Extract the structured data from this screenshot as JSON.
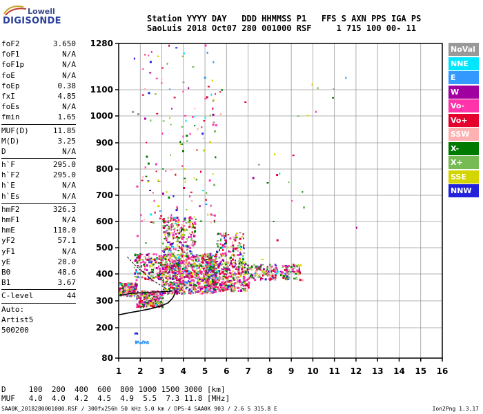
{
  "logo": {
    "top": "Lowell",
    "bottom": "DIGISONDE"
  },
  "header": {
    "line1": "Station YYYY DAY   DDD HHMMSS P1   FFS S AXN PPS IGA PS",
    "line2": "SaoLuis 2018 Oct07 280 001000 RSF     1 715 100 00- 11"
  },
  "params": [
    {
      "name": "foF2",
      "value": "3.650"
    },
    {
      "name": "foF1",
      "value": "N/A"
    },
    {
      "name": "foF1p",
      "value": "N/A"
    },
    {
      "name": "foE",
      "value": "N/A"
    },
    {
      "name": "foEp",
      "value": "0.38"
    },
    {
      "name": "fxI",
      "value": "4.85"
    },
    {
      "name": "foEs",
      "value": "N/A"
    },
    {
      "name": "fmin",
      "value": "1.65"
    },
    {
      "sep": true
    },
    {
      "name": "MUF(D)",
      "value": "11.85"
    },
    {
      "name": "M(D)",
      "value": "3.25"
    },
    {
      "name": "D",
      "value": "N/A"
    },
    {
      "sep": true
    },
    {
      "name": "h`F",
      "value": "295.0"
    },
    {
      "name": "h`F2",
      "value": "295.0"
    },
    {
      "name": "h`E",
      "value": "N/A"
    },
    {
      "name": "h`Es",
      "value": "N/A"
    },
    {
      "sep": true
    },
    {
      "name": "hmF2",
      "value": "326.3"
    },
    {
      "name": "hmF1",
      "value": "N/A"
    },
    {
      "name": "hmE",
      "value": "110.0"
    },
    {
      "name": "yF2",
      "value": "57.1"
    },
    {
      "name": "yF1",
      "value": "N/A"
    },
    {
      "name": "yE",
      "value": "20.0"
    },
    {
      "name": "B0",
      "value": "48.6"
    },
    {
      "name": "B1",
      "value": "3.67"
    },
    {
      "sep": true
    },
    {
      "name": "C-level",
      "value": "44"
    },
    {
      "sep": true
    },
    {
      "name": "Auto:",
      "value": ""
    },
    {
      "name": "Artist5",
      "value": ""
    },
    {
      "name": "500200",
      "value": ""
    }
  ],
  "legend": [
    {
      "label": "NoVal",
      "color": "#999999"
    },
    {
      "label": "NNE",
      "color": "#00e6ff"
    },
    {
      "label": "E",
      "color": "#3399ff"
    },
    {
      "label": "W",
      "color": "#a000a0"
    },
    {
      "label": "Vo-",
      "color": "#ff33aa"
    },
    {
      "label": "Vo+",
      "color": "#e6002e"
    },
    {
      "label": "SSW",
      "color": "#ffb0b0"
    },
    {
      "label": "X-",
      "color": "#007a00"
    },
    {
      "label": "X+",
      "color": "#77bb55"
    },
    {
      "label": "SSE",
      "color": "#d4d400"
    },
    {
      "label": "NNW",
      "color": "#2222dd"
    }
  ],
  "footer": {
    "line1": "D     100  200  400  600  800 1000 1500 3000 [km]",
    "line2": "MUF   4.0  4.0  4.2  4.5  4.9  5.5  7.3 11.8 [MHz]",
    "bottom": "SAA0K_2018280001000.RSF / 300fx256h 50 kHz 5.0 km / DPS-4 SAA0K 903 / 2.6 S 315.8 E",
    "version": "Ion2Png 1.3.17"
  },
  "chart_data": {
    "type": "scatter",
    "x_ticks": [
      "1",
      "2",
      "3",
      "4",
      "5",
      "6",
      "7",
      "8",
      "9",
      "10",
      "11",
      "12",
      "13",
      "14",
      "15",
      "16"
    ],
    "y_ticks": [
      "80",
      "200",
      "300",
      "400",
      "500",
      "600",
      "700",
      "800",
      "900",
      "1000",
      "1100",
      "1280"
    ],
    "xlim": [
      1,
      16
    ],
    "ylim": [
      80,
      1280
    ],
    "y_scale": "reciprocal",
    "grid": true,
    "legend_placement": "right",
    "traces": [
      {
        "f": 1.4,
        "h": 465
      },
      {
        "f": 1.8,
        "h": 430
      },
      {
        "f": 2.6,
        "h": 375
      },
      {
        "f": 3.2,
        "h": 345
      }
    ],
    "profile": [
      {
        "f": 1.0,
        "h": 248
      },
      {
        "f": 1.5,
        "h": 256
      },
      {
        "f": 2.0,
        "h": 263
      },
      {
        "f": 2.5,
        "h": 271
      },
      {
        "f": 3.0,
        "h": 282
      },
      {
        "f": 3.3,
        "h": 293
      },
      {
        "f": 3.5,
        "h": 310
      },
      {
        "f": 3.62,
        "h": 330
      },
      {
        "f": 3.65,
        "h": 338
      }
    ],
    "profile_e": [
      {
        "f": 1.0,
        "h": 320
      },
      {
        "f": 1.5,
        "h": 327
      },
      {
        "f": 2.0,
        "h": 330
      },
      {
        "f": 2.5,
        "h": 332
      },
      {
        "f": 3.0,
        "h": 334
      },
      {
        "f": 3.5,
        "h": 336
      }
    ],
    "clusters": [
      {
        "f": [
          1.0,
          1.8
        ],
        "h": [
          320,
          370
        ],
        "n": 180
      },
      {
        "f": [
          1.8,
          3.0
        ],
        "h": [
          280,
          340
        ],
        "n": 220
      },
      {
        "f": [
          1.7,
          3.0
        ],
        "h": [
          380,
          480
        ],
        "n": 160
      },
      {
        "f": [
          3.0,
          5.5
        ],
        "h": [
          330,
          480
        ],
        "n": 900
      },
      {
        "f": [
          3.0,
          4.5
        ],
        "h": [
          480,
          620
        ],
        "n": 220
      },
      {
        "f": [
          5.0,
          7.0
        ],
        "h": [
          340,
          450
        ],
        "n": 420
      },
      {
        "f": [
          5.5,
          6.8
        ],
        "h": [
          450,
          560
        ],
        "n": 120
      },
      {
        "f": [
          7.0,
          9.5
        ],
        "h": [
          380,
          440
        ],
        "n": 200
      },
      {
        "f": [
          2.0,
          5.5
        ],
        "h": [
          600,
          1280
        ],
        "n": 140
      },
      {
        "f": [
          1.5,
          11.0
        ],
        "h": [
          430,
          1150
        ],
        "n": 45
      }
    ],
    "es_trace": [
      {
        "f": 1.7,
        "h": 180
      },
      {
        "f": 1.9,
        "h": 143
      },
      {
        "f": 2.3,
        "h": 145
      }
    ]
  }
}
